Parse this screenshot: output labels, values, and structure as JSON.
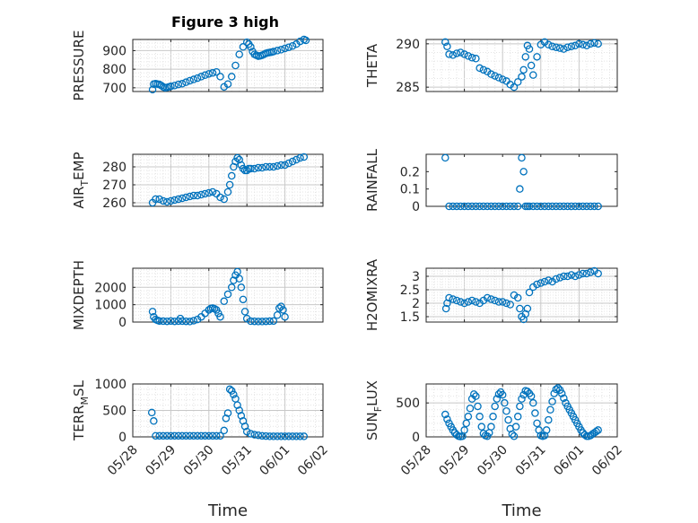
{
  "figure_title": "Figure 3 high",
  "colors": {
    "marker": "#0072bd",
    "axis": "#262626",
    "grid": "#c8c8c8",
    "minor_grid": "#e4e4e4"
  },
  "chart_data": [
    {
      "type": "scatter",
      "xlabel": "",
      "ylabel": "PRESSURE",
      "ylim": [
        680,
        960
      ],
      "yticks": [
        700,
        800,
        900
      ],
      "xlim": [
        0,
        5
      ],
      "xtick_labels": [],
      "grid": true,
      "marker": "circle",
      "series": [
        {
          "x": [
            0.52,
            0.55,
            0.6,
            0.65,
            0.7,
            0.75,
            0.8,
            0.85,
            0.9,
            0.95,
            1.0,
            1.1,
            1.2,
            1.3,
            1.4,
            1.5,
            1.6,
            1.7,
            1.8,
            1.9,
            2.0,
            2.1,
            2.2,
            2.3,
            2.4,
            2.5,
            2.6,
            2.7,
            2.8,
            2.9,
            3.0,
            3.05,
            3.1,
            3.15,
            3.2,
            3.25,
            3.3,
            3.35,
            3.4,
            3.45,
            3.5,
            3.55,
            3.6,
            3.65,
            3.7,
            3.8,
            3.9,
            4.0,
            4.1,
            4.2,
            4.3,
            4.4,
            4.5,
            4.55
          ],
          "y": [
            690,
            720,
            722,
            720,
            718,
            712,
            705,
            700,
            702,
            705,
            708,
            712,
            718,
            722,
            730,
            738,
            745,
            752,
            760,
            768,
            775,
            780,
            785,
            760,
            705,
            720,
            760,
            820,
            880,
            920,
            945,
            935,
            920,
            895,
            880,
            875,
            870,
            872,
            875,
            880,
            885,
            888,
            890,
            892,
            895,
            900,
            905,
            912,
            918,
            925,
            935,
            950,
            960,
            955
          ]
        }
      ]
    },
    {
      "type": "scatter",
      "xlabel": "",
      "ylabel": "THETA",
      "ylim": [
        284.5,
        290.5
      ],
      "yticks": [
        285,
        290
      ],
      "xlim": [
        0,
        5
      ],
      "xtick_labels": [],
      "grid": true,
      "marker": "circle",
      "series": [
        {
          "x": [
            0.5,
            0.55,
            0.6,
            0.7,
            0.8,
            0.9,
            1.0,
            1.1,
            1.2,
            1.3,
            1.4,
            1.5,
            1.6,
            1.7,
            1.8,
            1.9,
            2.0,
            2.1,
            2.2,
            2.3,
            2.4,
            2.5,
            2.55,
            2.6,
            2.65,
            2.7,
            2.75,
            2.8,
            2.9,
            3.0,
            3.1,
            3.2,
            3.3,
            3.4,
            3.5,
            3.6,
            3.7,
            3.8,
            3.9,
            4.0,
            4.1,
            4.2,
            4.3,
            4.4,
            4.5
          ],
          "y": [
            290.2,
            289.7,
            288.8,
            288.7,
            288.9,
            289.0,
            288.8,
            288.6,
            288.4,
            288.3,
            287.2,
            287.0,
            286.8,
            286.5,
            286.3,
            286.1,
            285.9,
            285.7,
            285.3,
            285.0,
            285.6,
            286.2,
            287.0,
            288.5,
            289.8,
            289.4,
            287.5,
            286.4,
            288.5,
            289.9,
            290.2,
            289.9,
            289.7,
            289.6,
            289.5,
            289.4,
            289.6,
            289.7,
            289.8,
            290.0,
            289.9,
            289.8,
            290.0,
            290.1,
            290.0
          ]
        }
      ]
    },
    {
      "type": "scatter",
      "xlabel": "",
      "ylabel": "AIR_TEMP",
      "ylim": [
        258,
        287
      ],
      "yticks": [
        260,
        270,
        280
      ],
      "xlim": [
        0,
        5
      ],
      "xtick_labels": [],
      "grid": true,
      "marker": "circle",
      "series": [
        {
          "x": [
            0.52,
            0.6,
            0.7,
            0.8,
            0.9,
            1.0,
            1.1,
            1.2,
            1.3,
            1.4,
            1.5,
            1.6,
            1.7,
            1.8,
            1.9,
            2.0,
            2.1,
            2.2,
            2.3,
            2.4,
            2.5,
            2.55,
            2.6,
            2.65,
            2.7,
            2.75,
            2.8,
            2.85,
            2.9,
            2.95,
            3.0,
            3.05,
            3.1,
            3.2,
            3.3,
            3.4,
            3.5,
            3.6,
            3.7,
            3.8,
            3.9,
            4.0,
            4.1,
            4.2,
            4.3,
            4.4,
            4.5
          ],
          "y": [
            260,
            262,
            262,
            261,
            260.5,
            261,
            261.5,
            262,
            262.5,
            263,
            263.5,
            264,
            264,
            264.5,
            265,
            265.5,
            266,
            265,
            263,
            262,
            266,
            270,
            275,
            280,
            283,
            285,
            284,
            281,
            279,
            278,
            278,
            279,
            279,
            279,
            279.5,
            279.5,
            280,
            280,
            280,
            280.5,
            281,
            281,
            282,
            283,
            284,
            285,
            285.5
          ]
        }
      ]
    },
    {
      "type": "scatter",
      "xlabel": "",
      "ylabel": "RAINFALL",
      "ylim": [
        0,
        0.3
      ],
      "yticks": [
        0,
        0.1,
        0.2
      ],
      "xlim": [
        0,
        5
      ],
      "xtick_labels": [],
      "grid": false,
      "marker": "circle",
      "series": [
        {
          "x": [
            0.5,
            0.6,
            0.7,
            0.8,
            0.9,
            1.0,
            1.1,
            1.2,
            1.3,
            1.4,
            1.5,
            1.6,
            1.7,
            1.8,
            1.9,
            2.0,
            2.1,
            2.2,
            2.3,
            2.4,
            2.45,
            2.5,
            2.55,
            2.6,
            2.65,
            2.7,
            2.8,
            2.9,
            3.0,
            3.1,
            3.2,
            3.3,
            3.4,
            3.5,
            3.6,
            3.7,
            3.8,
            3.9,
            4.0,
            4.1,
            4.2,
            4.3,
            4.4,
            4.5
          ],
          "y": [
            0.28,
            0,
            0,
            0,
            0,
            0,
            0,
            0,
            0,
            0,
            0,
            0,
            0,
            0,
            0,
            0,
            0,
            0,
            0,
            0,
            0.1,
            0.28,
            0.2,
            0,
            0,
            0,
            0,
            0,
            0,
            0,
            0,
            0,
            0,
            0,
            0,
            0,
            0,
            0,
            0,
            0,
            0,
            0,
            0,
            0
          ]
        }
      ]
    },
    {
      "type": "scatter",
      "xlabel": "",
      "ylabel": "MIXDEPTH",
      "ylim": [
        0,
        3100
      ],
      "yticks": [
        0,
        1000,
        2000
      ],
      "xlim": [
        0,
        5
      ],
      "xtick_labels": [],
      "grid": true,
      "marker": "circle",
      "series": [
        {
          "x": [
            0.52,
            0.55,
            0.6,
            0.65,
            0.7,
            0.8,
            0.9,
            1.0,
            1.1,
            1.2,
            1.25,
            1.3,
            1.4,
            1.5,
            1.6,
            1.7,
            1.8,
            1.9,
            2.0,
            2.05,
            2.1,
            2.15,
            2.2,
            2.25,
            2.3,
            2.4,
            2.5,
            2.6,
            2.65,
            2.7,
            2.75,
            2.8,
            2.85,
            2.9,
            2.95,
            3.0,
            3.1,
            3.2,
            3.3,
            3.4,
            3.5,
            3.6,
            3.7,
            3.8,
            3.85,
            3.9,
            3.95,
            4.0
          ],
          "y": [
            600,
            300,
            150,
            100,
            60,
            50,
            40,
            60,
            40,
            50,
            200,
            50,
            40,
            30,
            80,
            150,
            300,
            500,
            700,
            780,
            800,
            760,
            700,
            500,
            300,
            1200,
            1600,
            2000,
            2400,
            2700,
            2900,
            2500,
            2000,
            1300,
            600,
            200,
            50,
            40,
            30,
            30,
            40,
            50,
            60,
            400,
            800,
            900,
            700,
            300
          ]
        }
      ]
    },
    {
      "type": "scatter",
      "xlabel": "",
      "ylabel": "H2OMIXRA",
      "ylim": [
        1.3,
        3.3
      ],
      "yticks": [
        1.5,
        2,
        2.5,
        3
      ],
      "xlim": [
        0,
        5
      ],
      "xtick_labels": [],
      "grid": true,
      "marker": "circle",
      "series": [
        {
          "x": [
            0.52,
            0.55,
            0.6,
            0.7,
            0.8,
            0.9,
            1.0,
            1.1,
            1.2,
            1.3,
            1.4,
            1.5,
            1.6,
            1.7,
            1.8,
            1.9,
            2.0,
            2.1,
            2.2,
            2.3,
            2.4,
            2.45,
            2.5,
            2.55,
            2.6,
            2.65,
            2.7,
            2.8,
            2.9,
            3.0,
            3.1,
            3.2,
            3.3,
            3.4,
            3.5,
            3.6,
            3.7,
            3.8,
            3.9,
            4.0,
            4.1,
            4.2,
            4.3,
            4.4,
            4.5
          ],
          "y": [
            1.8,
            2.0,
            2.2,
            2.15,
            2.1,
            2.05,
            2.0,
            2.05,
            2.1,
            2.05,
            2.0,
            2.1,
            2.2,
            2.15,
            2.1,
            2.05,
            2.05,
            2.0,
            1.95,
            2.3,
            2.2,
            1.8,
            1.5,
            1.4,
            1.6,
            1.8,
            2.4,
            2.6,
            2.7,
            2.75,
            2.8,
            2.85,
            2.8,
            2.9,
            2.95,
            3.0,
            3.0,
            3.05,
            3.0,
            3.05,
            3.1,
            3.1,
            3.15,
            3.2,
            3.1
          ]
        }
      ]
    },
    {
      "type": "scatter",
      "xlabel": "Time",
      "ylabel": "TERR_MSL",
      "ylim": [
        0,
        1000
      ],
      "yticks": [
        0,
        500,
        1000
      ],
      "xlim": [
        0,
        5
      ],
      "xtick_labels": [
        "05/28",
        "05/29",
        "05/30",
        "05/31",
        "06/01",
        "06/02"
      ],
      "grid": true,
      "marker": "circle",
      "series": [
        {
          "x": [
            0.5,
            0.55,
            0.6,
            0.7,
            0.8,
            0.9,
            1.0,
            1.1,
            1.2,
            1.3,
            1.4,
            1.5,
            1.6,
            1.7,
            1.8,
            1.9,
            2.0,
            2.1,
            2.2,
            2.3,
            2.4,
            2.45,
            2.5,
            2.55,
            2.6,
            2.65,
            2.7,
            2.75,
            2.8,
            2.85,
            2.9,
            2.95,
            3.0,
            3.1,
            3.2,
            3.3,
            3.4,
            3.5,
            3.6,
            3.7,
            3.8,
            3.9,
            4.0,
            4.1,
            4.2,
            4.3,
            4.4,
            4.5
          ],
          "y": [
            460,
            300,
            20,
            20,
            20,
            20,
            20,
            20,
            20,
            20,
            20,
            20,
            20,
            20,
            20,
            20,
            20,
            20,
            20,
            20,
            120,
            350,
            450,
            900,
            870,
            800,
            720,
            600,
            500,
            400,
            300,
            200,
            100,
            60,
            40,
            30,
            20,
            15,
            10,
            10,
            10,
            10,
            10,
            10,
            10,
            10,
            10,
            10
          ]
        }
      ]
    },
    {
      "type": "scatter",
      "xlabel": "Time",
      "ylabel": "SUN_FLUX",
      "ylim": [
        0,
        780
      ],
      "yticks": [
        0,
        500
      ],
      "xlim": [
        0,
        5
      ],
      "xtick_labels": [
        "05/28",
        "05/29",
        "05/30",
        "05/31",
        "06/01",
        "06/02"
      ],
      "grid": true,
      "marker": "circle",
      "series": [
        {
          "x": [
            0.5,
            0.55,
            0.6,
            0.65,
            0.7,
            0.75,
            0.8,
            0.85,
            0.9,
            0.95,
            1.0,
            1.05,
            1.1,
            1.15,
            1.2,
            1.25,
            1.3,
            1.35,
            1.4,
            1.45,
            1.5,
            1.55,
            1.6,
            1.65,
            1.7,
            1.75,
            1.8,
            1.85,
            1.9,
            1.95,
            2.0,
            2.05,
            2.1,
            2.15,
            2.2,
            2.25,
            2.3,
            2.35,
            2.4,
            2.45,
            2.5,
            2.55,
            2.6,
            2.65,
            2.7,
            2.75,
            2.8,
            2.85,
            2.9,
            2.95,
            3.0,
            3.05,
            3.1,
            3.15,
            3.2,
            3.25,
            3.3,
            3.35,
            3.4,
            3.45,
            3.5,
            3.55,
            3.6,
            3.65,
            3.7,
            3.75,
            3.8,
            3.85,
            3.9,
            3.95,
            4.0,
            4.05,
            4.1,
            4.15,
            4.2,
            4.25,
            4.3,
            4.35,
            4.4,
            4.45,
            4.5
          ],
          "y": [
            330,
            260,
            200,
            150,
            100,
            60,
            30,
            10,
            5,
            10,
            100,
            200,
            300,
            420,
            560,
            630,
            600,
            450,
            300,
            150,
            50,
            20,
            10,
            60,
            150,
            300,
            450,
            560,
            630,
            660,
            620,
            500,
            380,
            250,
            120,
            40,
            10,
            150,
            300,
            450,
            560,
            620,
            680,
            670,
            640,
            600,
            500,
            350,
            200,
            100,
            20,
            10,
            20,
            100,
            250,
            400,
            520,
            640,
            700,
            720,
            690,
            640,
            570,
            500,
            450,
            400,
            350,
            300,
            250,
            200,
            150,
            100,
            60,
            30,
            10,
            10,
            20,
            40,
            60,
            80,
            100
          ]
        }
      ]
    }
  ]
}
